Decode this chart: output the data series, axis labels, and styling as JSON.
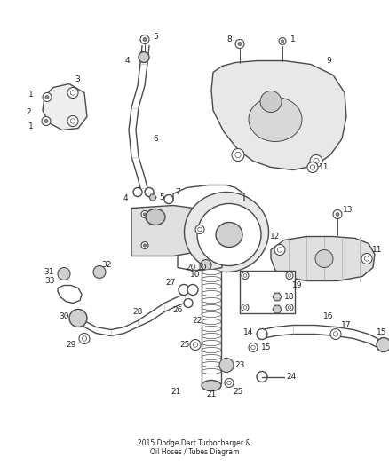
{
  "title": "2015 Dodge Dart Turbocharger & Oil Hoses / Tubes Diagram",
  "bg_color": "#ffffff",
  "line_color": "#4a4a4a",
  "label_color": "#222222",
  "fig_width": 4.38,
  "fig_height": 5.33,
  "dpi": 100
}
